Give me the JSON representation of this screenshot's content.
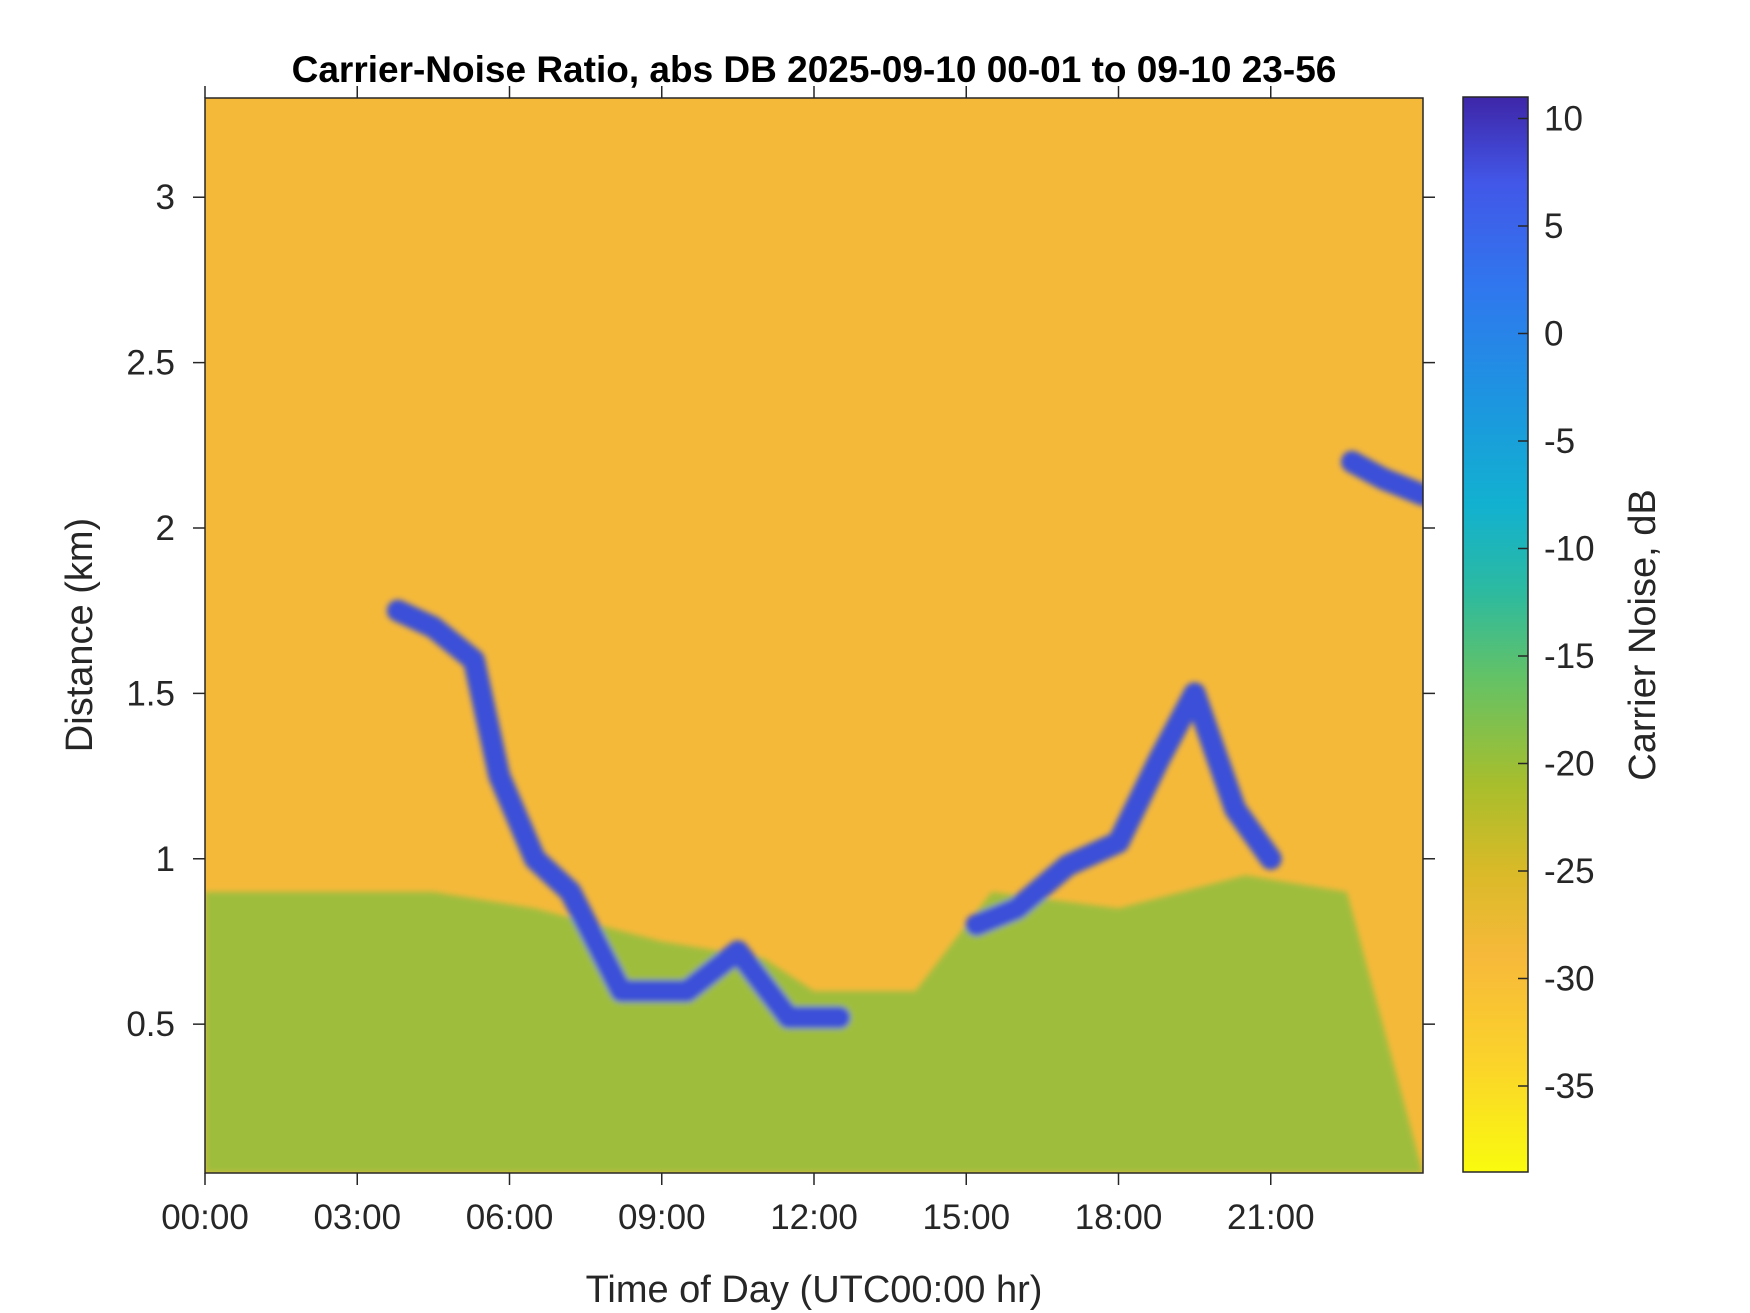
{
  "chart_data": {
    "type": "heatmap",
    "title": "Carrier-Noise Ratio, abs DB 2025-09-10 00-01 to 09-10 23-56",
    "xlabel": "Time of Day (UTC00:00 hr)",
    "ylabel": "Distance (km)",
    "colorbar_label": "Carrier Noise, dB",
    "x_ticks": [
      "00:00",
      "03:00",
      "06:00",
      "09:00",
      "12:00",
      "15:00",
      "18:00",
      "21:00"
    ],
    "x_tick_hours": [
      0,
      3,
      6,
      9,
      12,
      15,
      18,
      21
    ],
    "xlim_hours": [
      0,
      24
    ],
    "y_ticks": [
      "0.5",
      "1",
      "1.5",
      "2",
      "2.5",
      "3"
    ],
    "y_tick_values": [
      0.5,
      1,
      1.5,
      2,
      2.5,
      3
    ],
    "ylim": [
      0.05,
      3.3
    ],
    "colorbar_ticks": [
      "10",
      "5",
      "0",
      "-5",
      "-10",
      "-15",
      "-20",
      "-25",
      "-30",
      "-35"
    ],
    "colorbar_tick_values": [
      10,
      5,
      0,
      -5,
      -10,
      -15,
      -20,
      -25,
      -30,
      -35
    ],
    "clim": [
      -39,
      11
    ],
    "colormap": "parula",
    "colors": {
      "background_noise": "#f5b93a",
      "boundary_layer": "#9fbd3c",
      "strong_return": "#3b4fd8"
    },
    "features": [
      {
        "label": "boundary-layer",
        "hours": [
          0,
          1.5,
          4.5,
          6.5,
          9,
          11,
          12,
          14,
          15.5,
          18,
          20.5,
          22.5,
          24
        ],
        "top_km": [
          0.9,
          0.9,
          0.9,
          0.85,
          0.75,
          0.7,
          0.6,
          0.6,
          0.9,
          0.85,
          0.95,
          0.9,
          0.0
        ]
      },
      {
        "label": "aerosol-layer-morning",
        "hours": [
          3.8,
          4.5,
          5.3,
          5.8,
          6.5,
          7.2,
          8.2,
          9.5,
          10.5,
          11.5,
          12.5
        ],
        "top_km": [
          1.75,
          1.7,
          1.6,
          1.25,
          1.0,
          0.9,
          0.6,
          0.6,
          0.72,
          0.52,
          0.52
        ],
        "value_db": 8
      },
      {
        "label": "aerosol-layer-evening",
        "hours": [
          15.2,
          16,
          17,
          18,
          18.8,
          19.5,
          20.3,
          21
        ],
        "top_km": [
          0.8,
          0.85,
          0.98,
          1.05,
          1.3,
          1.5,
          1.15,
          1.0
        ],
        "value_db": 8
      },
      {
        "label": "cloud-2.2km",
        "hours": [
          22.6,
          23.2,
          24
        ],
        "top_km": [
          2.2,
          2.15,
          2.1
        ],
        "value_db": 6
      }
    ]
  }
}
